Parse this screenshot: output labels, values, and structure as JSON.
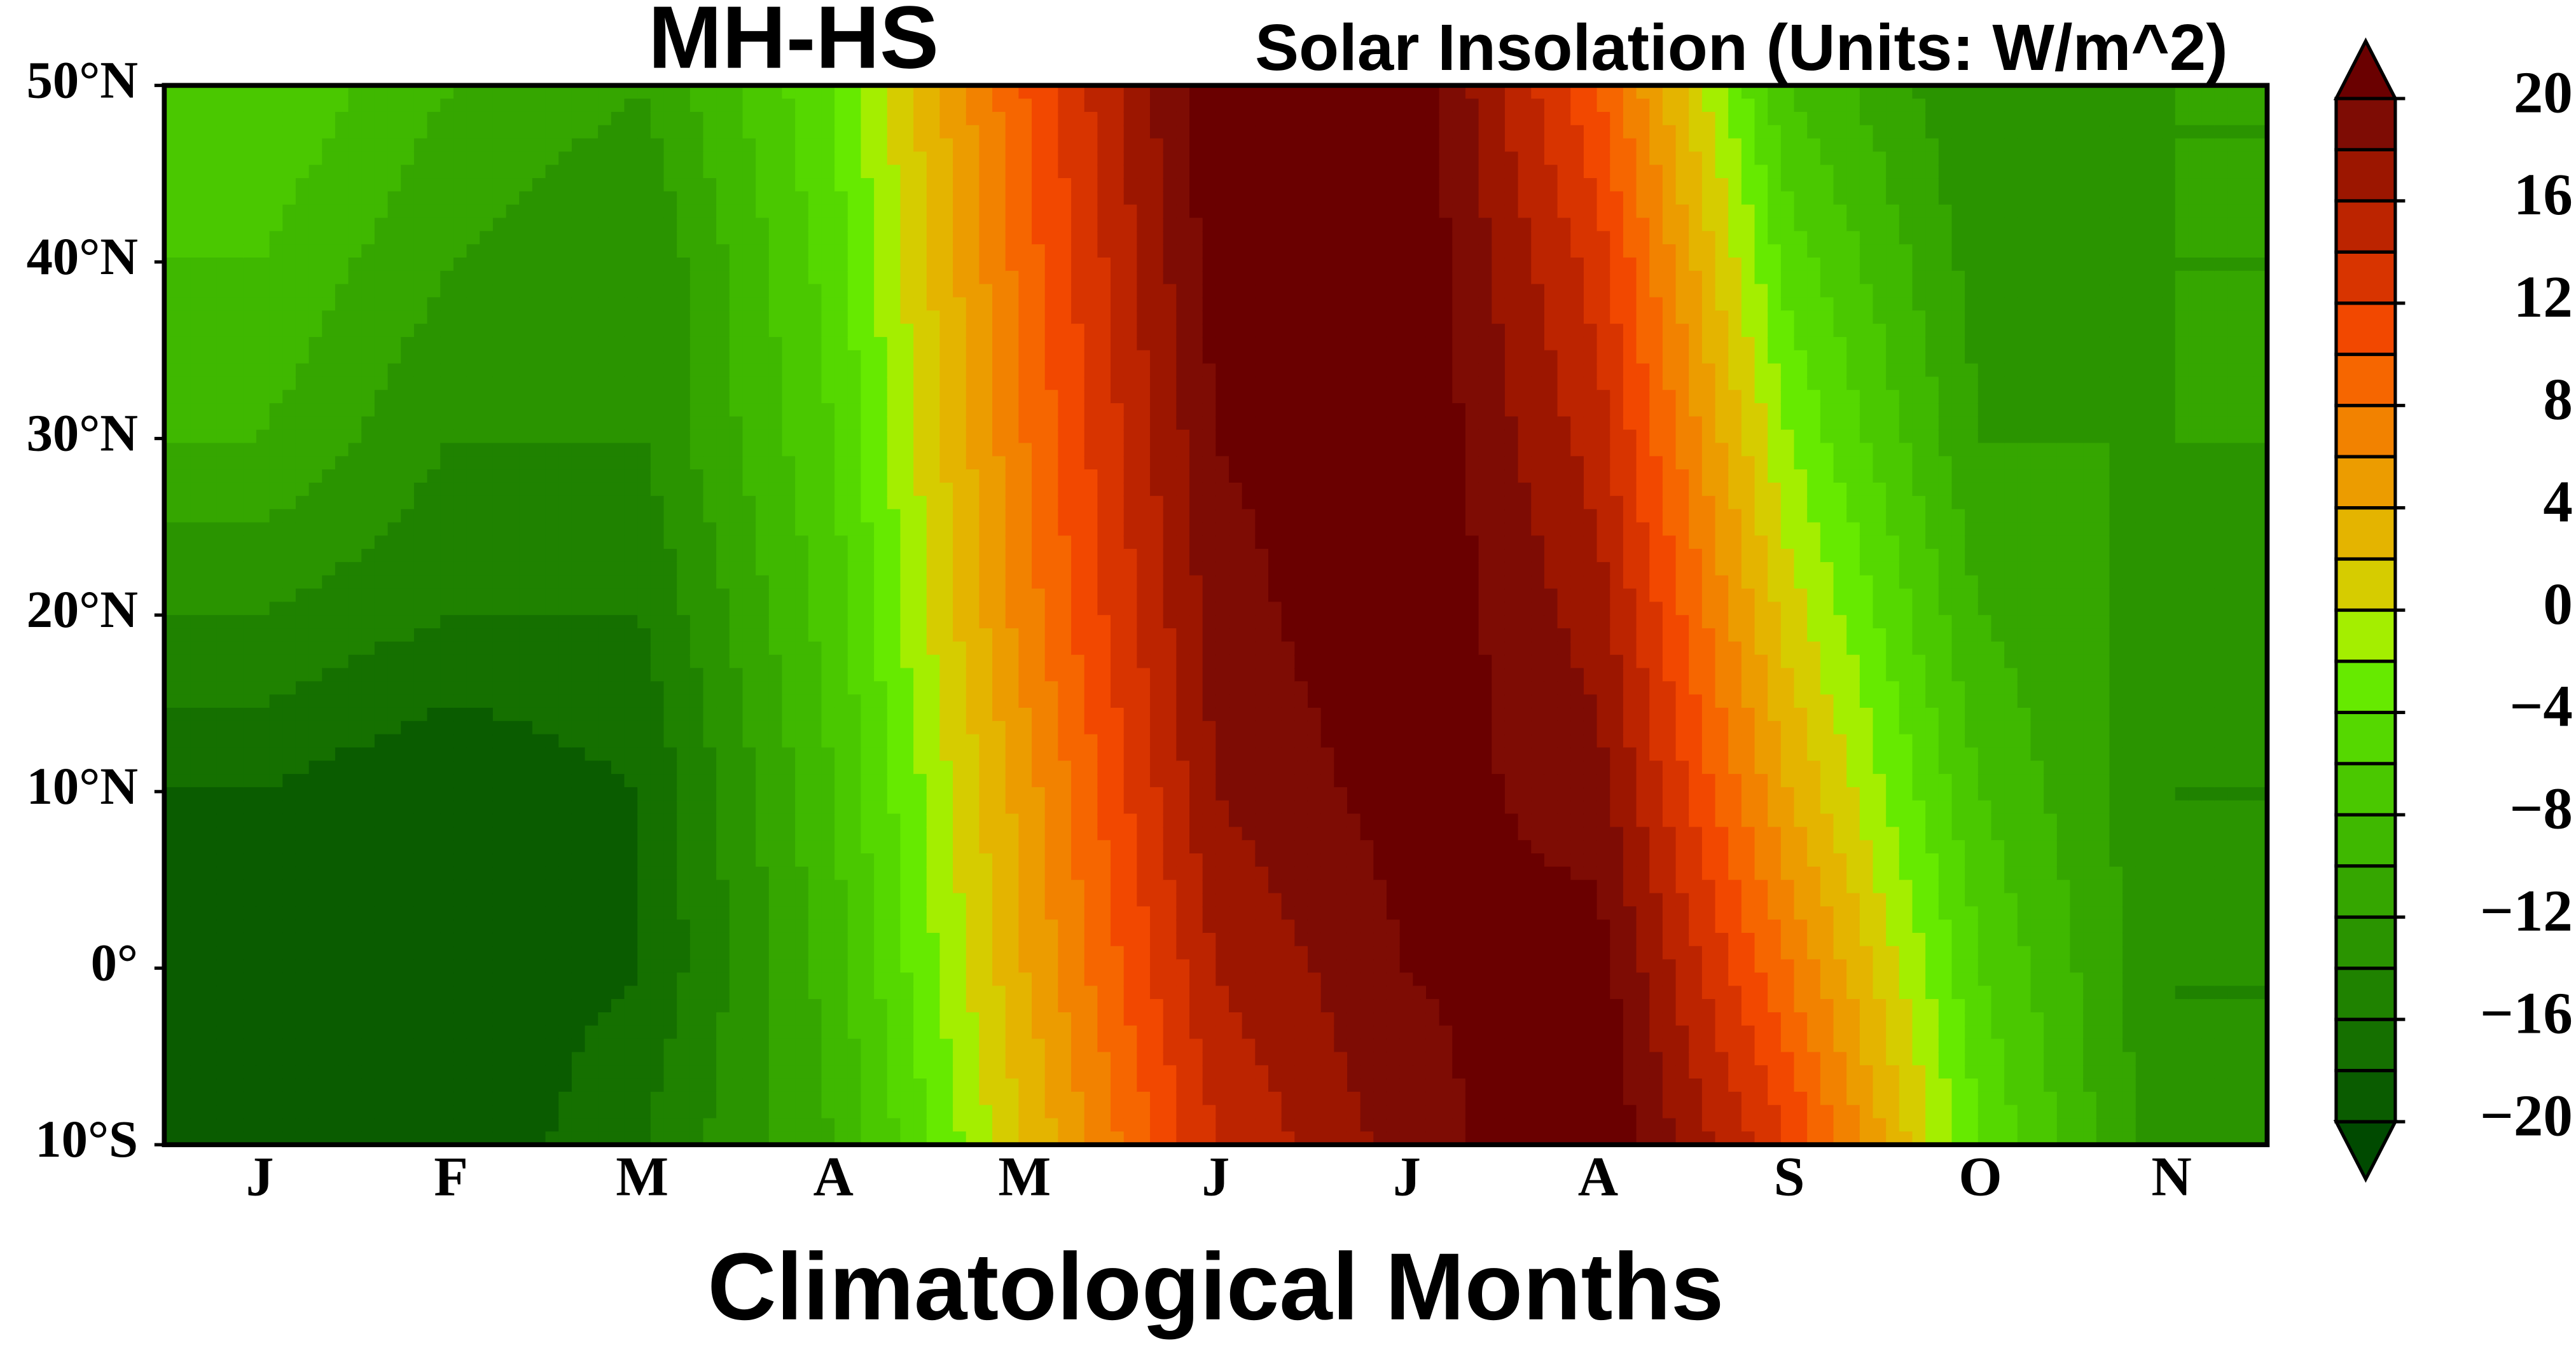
{
  "chart_data": {
    "type": "contour",
    "title": "MH-HS",
    "subtitle": "Solar Insolation (Units: W/m^2)",
    "x_label": "Climatological Months",
    "categories": [
      "J",
      "F",
      "M",
      "A",
      "M",
      "J",
      "J",
      "A",
      "S",
      "O",
      "N"
    ],
    "y": [
      50,
      40,
      30,
      20,
      10,
      0,
      -10
    ],
    "values": [
      [
        -6,
        -10,
        -12,
        -4,
        10,
        22,
        22,
        10,
        -8,
        -14,
        -12
      ],
      [
        -8,
        -12,
        -14,
        -5,
        9,
        21,
        22,
        13,
        -5,
        -13,
        -12
      ],
      [
        -10,
        -14,
        -14,
        -6,
        8,
        20,
        22,
        15,
        -2,
        -12,
        -12
      ],
      [
        -14,
        -16,
        -16,
        -7,
        7,
        19,
        22,
        17,
        1,
        -10,
        -13
      ],
      [
        -18,
        -20,
        -18,
        -8,
        5,
        18,
        21,
        19,
        4,
        -8,
        -14
      ],
      [
        -20,
        -20,
        -18,
        -9,
        4,
        16,
        20,
        21,
        8,
        -6,
        -14
      ],
      [
        -20,
        -20,
        -16,
        -10,
        2,
        14,
        19,
        22,
        12,
        -4,
        -14
      ]
    ],
    "ylim": [
      -10,
      50
    ],
    "yticks": [
      {
        "value": -10,
        "label": "10°S"
      },
      {
        "value": 0,
        "label": "0°"
      },
      {
        "value": 10,
        "label": "10°N"
      },
      {
        "value": 20,
        "label": "20°N"
      },
      {
        "value": 30,
        "label": "30°N"
      },
      {
        "value": 40,
        "label": "40°N"
      },
      {
        "value": 50,
        "label": "50°N"
      }
    ],
    "levels": [
      -20,
      -18,
      -16,
      -14,
      -12,
      -10,
      -8,
      -6,
      -4,
      -2,
      0,
      2,
      4,
      6,
      8,
      10,
      12,
      14,
      16,
      18,
      20
    ],
    "colors": [
      "#004a00",
      "#0a5c00",
      "#157000",
      "#1f8200",
      "#2a9400",
      "#35a600",
      "#3fb800",
      "#4ac800",
      "#55d800",
      "#66ea00",
      "#a4ee00",
      "#d6cc00",
      "#e4b400",
      "#ec9c00",
      "#f28200",
      "#f66600",
      "#f24800",
      "#d83400",
      "#bc2400",
      "#9c1600",
      "#7e0c04",
      "#6a0000"
    ],
    "colorbar_ticks": [
      {
        "value": -20,
        "label": "−20"
      },
      {
        "value": -16,
        "label": "−16"
      },
      {
        "value": -12,
        "label": "−12"
      },
      {
        "value": -8,
        "label": "−8"
      },
      {
        "value": -4,
        "label": "−4"
      },
      0,
      4,
      8,
      12,
      16,
      20
    ]
  }
}
